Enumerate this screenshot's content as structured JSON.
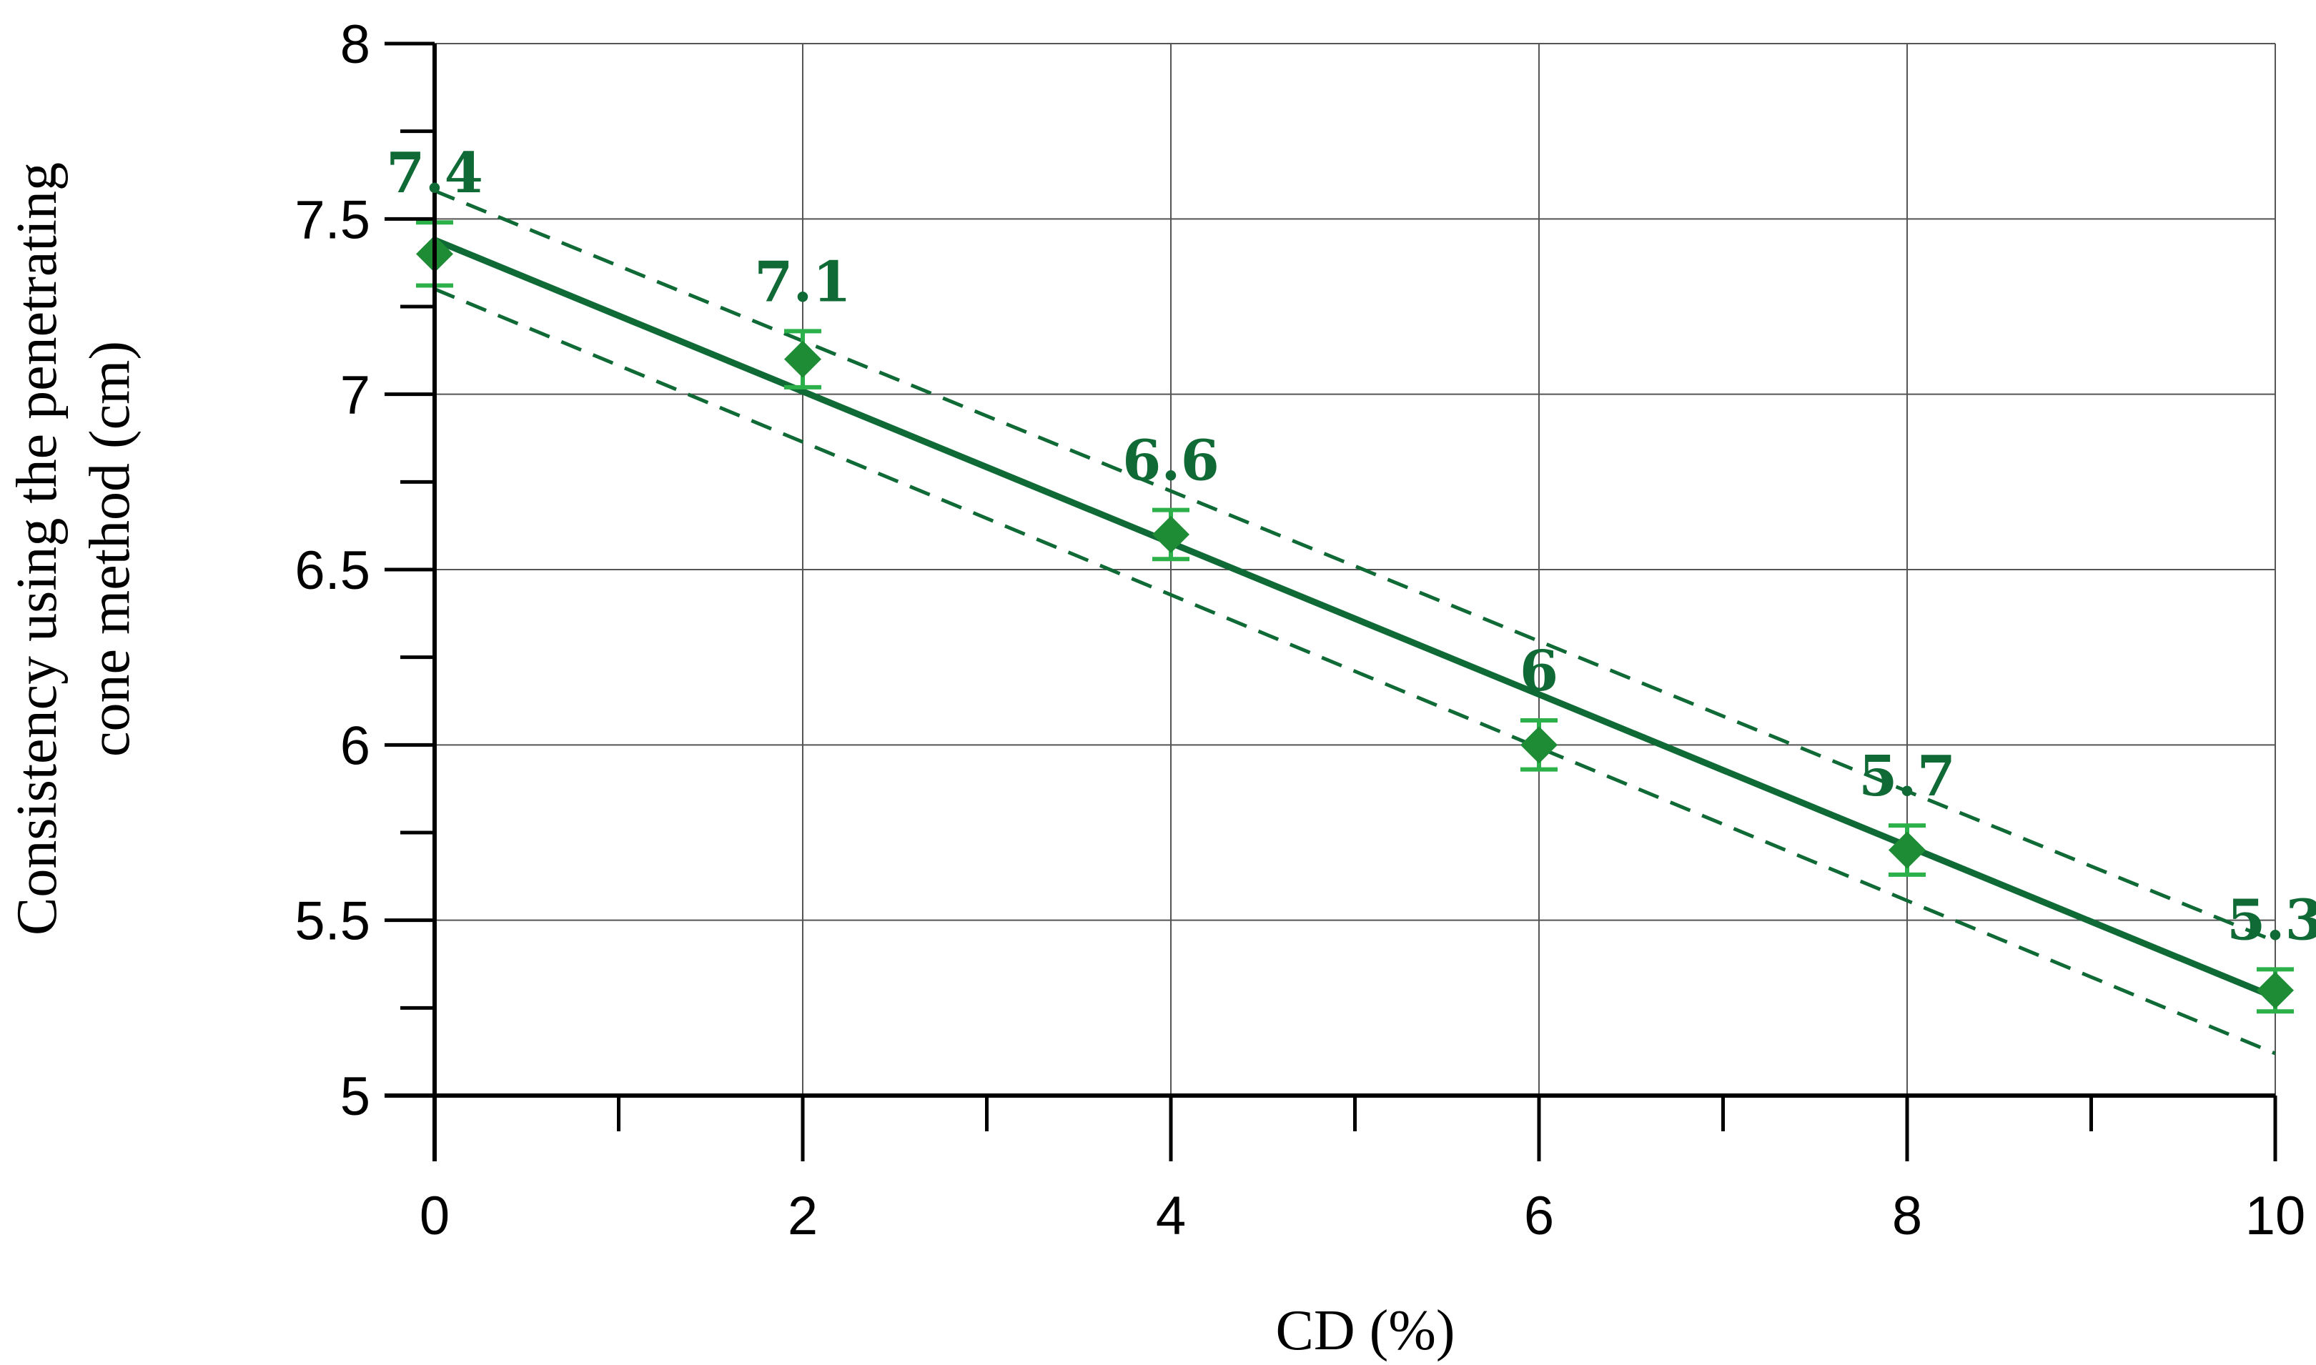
{
  "chart_data": {
    "type": "scatter",
    "title": "",
    "xlabel": "CD (%)",
    "ylabel_lines": [
      "Consistency using the penetrating",
      "cone method (cm)"
    ],
    "xlim": [
      0,
      10
    ],
    "ylim": [
      5,
      8
    ],
    "x_ticks": [
      "0",
      "2",
      "4",
      "6",
      "8",
      "10"
    ],
    "y_ticks": [
      "5",
      "5.5",
      "6",
      "6.5",
      "7",
      "7.5",
      "8"
    ],
    "grid": true,
    "series": [
      {
        "x": [
          0,
          2,
          4,
          6,
          8,
          10
        ],
        "y": [
          7.4,
          7.1,
          6.6,
          6.0,
          5.7,
          5.3
        ],
        "error": [
          0.09,
          0.08,
          0.07,
          0.07,
          0.07,
          0.06
        ],
        "labels": [
          "7.4",
          "7.1",
          "6.6",
          "6",
          "5.7",
          "5.3"
        ],
        "marker": "diamond"
      }
    ],
    "fit_line": {
      "intercept": 7.44,
      "slope": -0.216,
      "style": "solid"
    },
    "confidence_band": {
      "upper": {
        "intercept": 7.58,
        "slope": -0.214
      },
      "lower": {
        "intercept": 7.3,
        "slope": -0.218
      },
      "style": "dashed"
    },
    "colors": {
      "marker": "#1e8c35",
      "error_bar": "#2bb04a",
      "fit": "#0f6a35",
      "band": "#0f6a35",
      "label": "#0f6a35",
      "grid": "#555555",
      "axis": "#000000"
    }
  }
}
